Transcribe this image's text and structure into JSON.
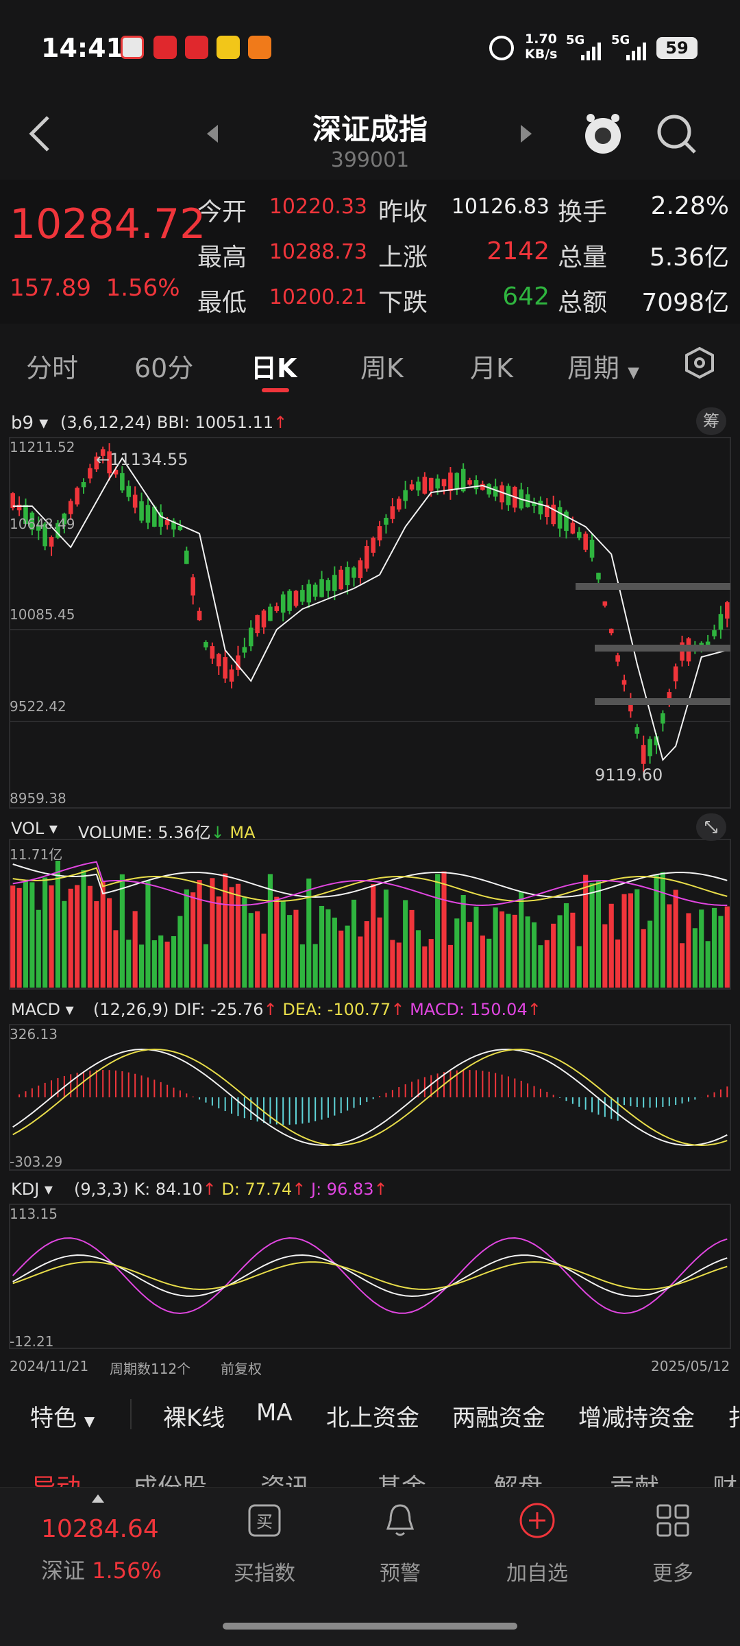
{
  "status": {
    "time": "14:41",
    "net_speed": "1.70",
    "net_unit": "KB/s",
    "sig1": "5G",
    "sig2": "5G",
    "battery": "59"
  },
  "nav": {
    "title": "深证成指",
    "code": "399001"
  },
  "quote": {
    "price": "10284.72",
    "change": "157.89",
    "change_pct": "1.56%",
    "open_label": "今开",
    "open": "10220.33",
    "prev_label": "昨收",
    "prev": "10126.83",
    "turnover_label": "换手",
    "turnover": "2.28%",
    "high_label": "最高",
    "high": "10288.73",
    "up_label": "上涨",
    "up": "2142",
    "volume_label": "总量",
    "volume": "5.36亿",
    "low_label": "最低",
    "low": "10200.21",
    "down_label": "下跌",
    "down": "642",
    "amount_label": "总额",
    "amount": "7098亿"
  },
  "tabs": [
    "分时",
    "60分",
    "日K",
    "周K",
    "月K",
    "周期"
  ],
  "main_panel": {
    "indicator": "b9",
    "params": "(3,6,12,24)",
    "bbi": "BBI: 10051.11",
    "chip_btn": "筹",
    "y_labels": [
      "11211.52",
      "10648.49",
      "10085.45",
      "9522.42",
      "8959.38"
    ],
    "high_note": "11134.55",
    "low_note": "9119.60"
  },
  "vol_panel": {
    "indicator": "VOL",
    "volume": "VOLUME: 5.36亿",
    "ma": "MA",
    "top": "11.71亿"
  },
  "macd_panel": {
    "indicator": "MACD",
    "params": "(12,26,9)",
    "dif": "DIF: -25.76",
    "dea": "DEA: -100.77",
    "macd": "MACD: 150.04",
    "top": "326.13",
    "bottom": "-303.29"
  },
  "kdj_panel": {
    "indicator": "KDJ",
    "params": "(9,3,3)",
    "k": "K: 84.10",
    "d": "D: 77.74",
    "j": "J: 96.83",
    "top": "113.15",
    "bottom": "-12.21"
  },
  "footer_axis": {
    "start": "2024/11/21",
    "periods": "周期数112个",
    "adj": "前复权",
    "end": "2025/05/12"
  },
  "subtabs": [
    "特色",
    "裸K线",
    "MA",
    "北上资金",
    "两融资金",
    "增减持资金",
    "扌"
  ],
  "infotabs": [
    "异动",
    "成份股",
    "资讯",
    "基金",
    "解盘",
    "贡献",
    "财"
  ],
  "bottom": {
    "index_price": "10284.64",
    "index_name": "深证",
    "index_pct": "1.56%",
    "buy": "买指数",
    "alert": "预警",
    "add": "加自选",
    "more": "更多"
  },
  "colors": {
    "up": "#f0353b",
    "down": "#2fb53f",
    "bg": "#161617",
    "grid": "#2c2c2e"
  }
}
